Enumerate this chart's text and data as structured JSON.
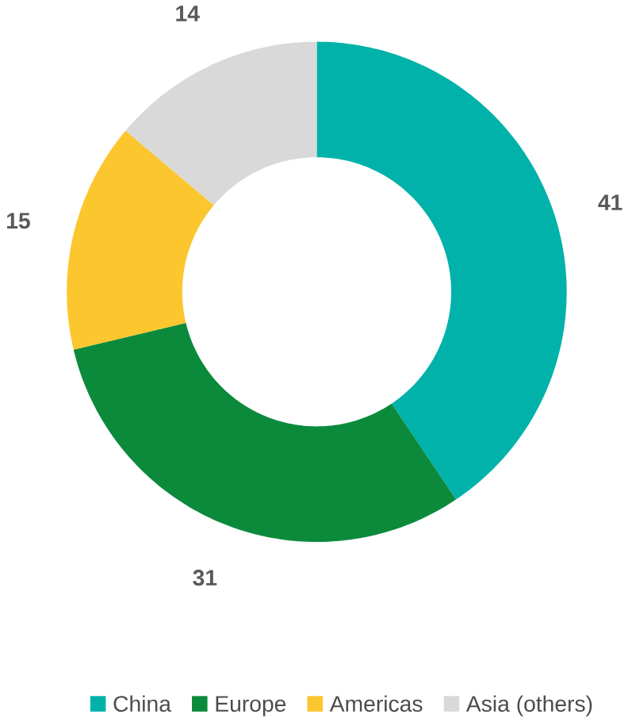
{
  "chart_data": {
    "type": "donut",
    "categories": [
      "China",
      "Europe",
      "Americas",
      "Asia (others)"
    ],
    "values": [
      41,
      31,
      15,
      14
    ],
    "colors": [
      "#00b2a9",
      "#0b8a3c",
      "#fcc62e",
      "#d9d9d9"
    ],
    "data_labels": true,
    "legend": "bottom"
  }
}
